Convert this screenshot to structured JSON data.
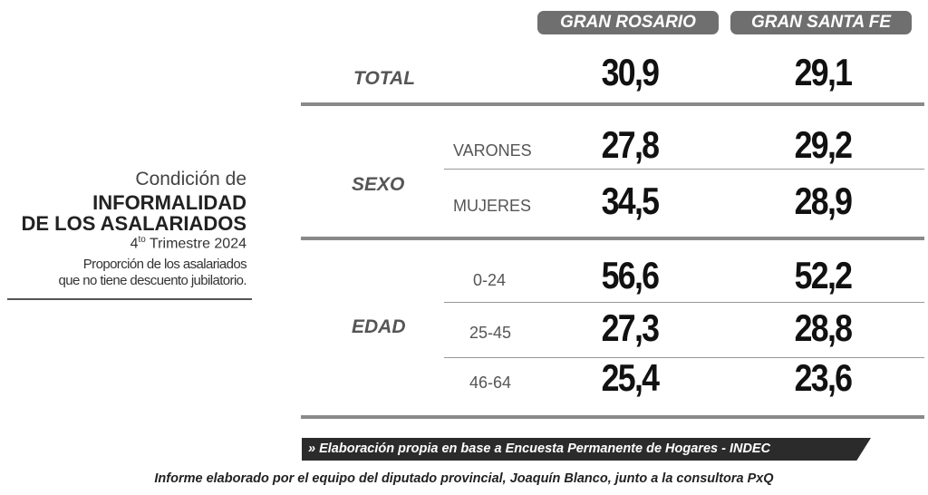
{
  "title": {
    "line1": "Condición de",
    "line2": "INFORMALIDAD",
    "line3": "DE LOS ASALARIADOS",
    "period_num": "4",
    "period_sup": "to",
    "period_rest": "Trimestre 2024",
    "desc1": "Proporción de los asalariados",
    "desc2": "que no tiene descuento jubilatorio."
  },
  "columns": [
    "GRAN ROSARIO",
    "GRAN SANTA FE"
  ],
  "total": {
    "label": "TOTAL",
    "values": [
      "30,9",
      "29,1"
    ]
  },
  "sexo": {
    "label": "SEXO",
    "rows": [
      {
        "label": "VARONES",
        "values": [
          "27,8",
          "29,2"
        ]
      },
      {
        "label": "MUJERES",
        "values": [
          "34,5",
          "28,9"
        ]
      }
    ]
  },
  "edad": {
    "label": "EDAD",
    "rows": [
      {
        "label": "0-24",
        "values": [
          "56,6",
          "52,2"
        ]
      },
      {
        "label": "25-45",
        "values": [
          "27,3",
          "28,8"
        ]
      },
      {
        "label": "46-64",
        "values": [
          "25,4",
          "23,6"
        ]
      }
    ]
  },
  "source": "» Elaboración propia en base a Encuesta Permanente de Hogares - INDEC",
  "footer": "Informe elaborado por el equipo del diputado provincial, Joaquín Blanco, junto a la consultora PxQ"
}
